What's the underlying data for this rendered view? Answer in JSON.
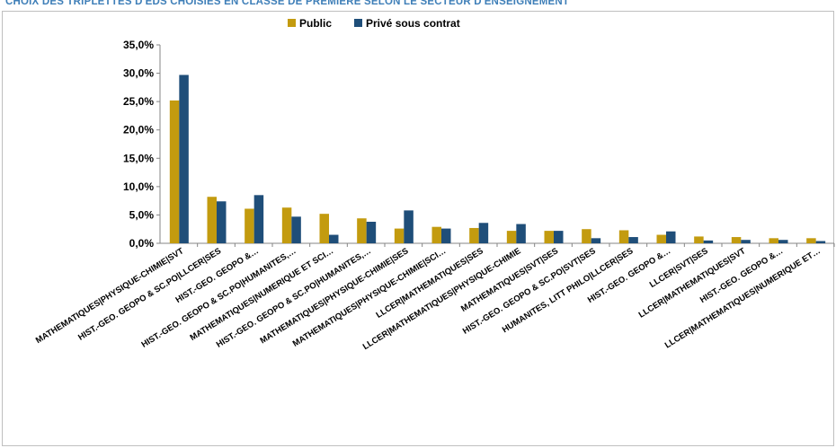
{
  "chart_data": {
    "type": "bar",
    "title": "CHOIX DES TRIPLETTES D'EDS CHOISIES EN CLASSE DE PREMIERE SELON LE SECTEUR D'ENSEIGNEMENT",
    "xlabel": "",
    "ylabel": "",
    "ylim": [
      0,
      35
    ],
    "yticks": [
      "0,0%",
      "5,0%",
      "10,0%",
      "15,0%",
      "20,0%",
      "25,0%",
      "30,0%",
      "35,0%"
    ],
    "grid": false,
    "legend_position": "top-center",
    "categories": [
      "MATHEMATIQUES|PHYSIQUE-CHIMIE|SVT",
      "HIST.-GEO. GEOPO & SC.PO|LLCER|SES",
      "HIST.-GEO. GEOPO &…",
      "HIST.-GEO. GEOPO & SC.PO|HUMANITES,…",
      "MATHEMATIQUES|NUMERIQUE ET SCI…",
      "HIST.-GEO. GEOPO & SC.PO|HUMANITES,…",
      "MATHEMATIQUES|PHYSIQUE-CHIMIE|SES",
      "MATHEMATIQUES|PHYSIQUE-CHIMIE|SCI…",
      "LLCER|MATHEMATIQUES|SES",
      "LLCER|MATHEMATIQUES|PHYSIQUE-CHIMIE",
      "MATHEMATIQUES|SVT|SES",
      "HIST.-GEO. GEOPO & SC.PO|SVT|SES",
      "HUMANITES, LITT PHILO|LLCER|SES",
      "HIST.-GEO. GEOPO &…",
      "LLCER|SVT|SES",
      "LLCER|MATHEMATIQUES|SVT",
      "HIST.-GEO. GEOPO &…",
      "LLCER|MATHEMATIQUES|NUMERIQUE ET…"
    ],
    "series": [
      {
        "name": "Public",
        "color": "#c39b0f",
        "values": [
          25.2,
          8.2,
          6.1,
          6.3,
          5.2,
          4.4,
          2.6,
          2.9,
          2.7,
          2.2,
          2.2,
          2.5,
          2.3,
          1.5,
          1.2,
          1.1,
          0.9,
          0.9
        ]
      },
      {
        "name": "Privé sous contrat",
        "color": "#1f4e79",
        "values": [
          29.7,
          7.4,
          8.5,
          4.7,
          1.5,
          3.8,
          5.8,
          2.6,
          3.6,
          3.4,
          2.2,
          0.9,
          1.1,
          2.1,
          0.5,
          0.6,
          0.6,
          0.4
        ]
      }
    ]
  }
}
